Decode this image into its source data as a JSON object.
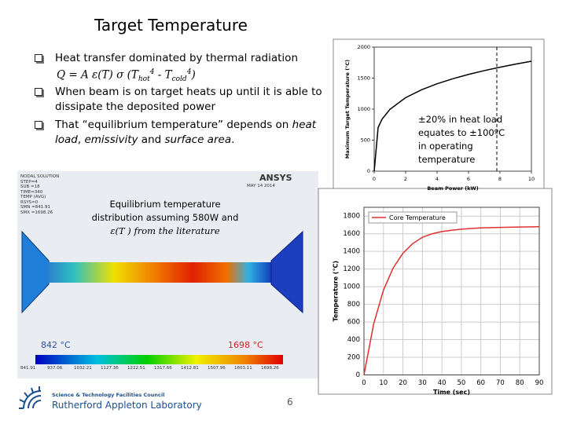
{
  "title": "Target Temperature",
  "bullets": [
    {
      "text": "Heat transfer dominated by thermal radiation"
    },
    {
      "text": "When beam is on target heats up until it is able to",
      "text2": "dissipate the deposited power"
    },
    {
      "parts": [
        "That “equilibrium temperature” depends on ",
        "heat",
        " ",
        "load",
        ", ",
        "emissivity",
        " and ",
        "surface area",
        "."
      ]
    }
  ],
  "formula": {
    "lhs": "Q = A ε(T) σ (T",
    "sub1": "hot",
    "sup1": "4",
    "mid": " - T",
    "sub2": "cold",
    "sup2": "4",
    "end": ")"
  },
  "charts": [
    {
      "type": "line",
      "x_label": "Beam Power (kW)",
      "y_label": "Maximum Target Temperature (°C)",
      "x": [
        0,
        0.25,
        0.5,
        1,
        2,
        3,
        4,
        5,
        6,
        7,
        8,
        9,
        10
      ],
      "series": [
        {
          "color": "#000000",
          "values": [
            0,
            704,
            838,
            997,
            1185,
            1311,
            1409,
            1490,
            1560,
            1621,
            1676,
            1726,
            1772
          ]
        }
      ],
      "xlim": [
        0,
        10
      ],
      "ylim": [
        0,
        2000
      ],
      "xticks": [
        0,
        2,
        4,
        6,
        8,
        10
      ],
      "yticks": [
        0,
        500,
        1000,
        1500,
        2000
      ],
      "reference_x": 7.8,
      "grid": false
    },
    {
      "type": "line",
      "x_label": "Time (sec)",
      "y_label": "Temperature (°C)",
      "x": [
        0,
        5,
        10,
        15,
        20,
        25,
        30,
        35,
        40,
        45,
        50,
        55,
        60,
        70,
        80,
        90
      ],
      "series": [
        {
          "name": "Core Temperature",
          "color": "#e03030",
          "values": [
            0,
            580,
            961,
            1213,
            1379,
            1488,
            1560,
            1600,
            1625,
            1640,
            1652,
            1660,
            1666,
            1672,
            1676,
            1680
          ]
        }
      ],
      "xlim": [
        0,
        90
      ],
      "ylim": [
        0,
        1900
      ],
      "xticks": [
        0,
        10,
        20,
        30,
        40,
        50,
        60,
        70,
        80,
        90
      ],
      "yticks": [
        0,
        200,
        400,
        600,
        800,
        1000,
        1200,
        1400,
        1600,
        1800
      ],
      "grid": true,
      "legend": "upper left"
    }
  ],
  "annotation_lines": [
    "±20% in heat load",
    "equates to ±100ºC",
    "in operating",
    "temperature"
  ],
  "simulation": {
    "caption1": "Equilibrium temperature",
    "caption2": "distribution assuming 580W and",
    "caption3": "ε(T ) from the literature",
    "info": [
      "NODAL SOLUTION",
      "STEP=4",
      "SUB =18",
      "TIME=340",
      "TEMP     (AVG)",
      "RSYS=0",
      "SMN =841.91",
      "SMX =1698.26"
    ],
    "logo": "ANSYS",
    "date": "MAY 14 2014",
    "min_label": "842 °C",
    "max_label": "1698 °C",
    "scale": [
      "841.91",
      "937.06",
      "1032.21",
      "1127.36",
      "1222.51",
      "1317.66",
      "1412.81",
      "1507.96",
      "1603.11",
      "1698.26"
    ]
  },
  "footer": {
    "council": "Science & Technology Facilities Council",
    "lab": "Rutherford Appleton Laboratory",
    "page": "6"
  }
}
